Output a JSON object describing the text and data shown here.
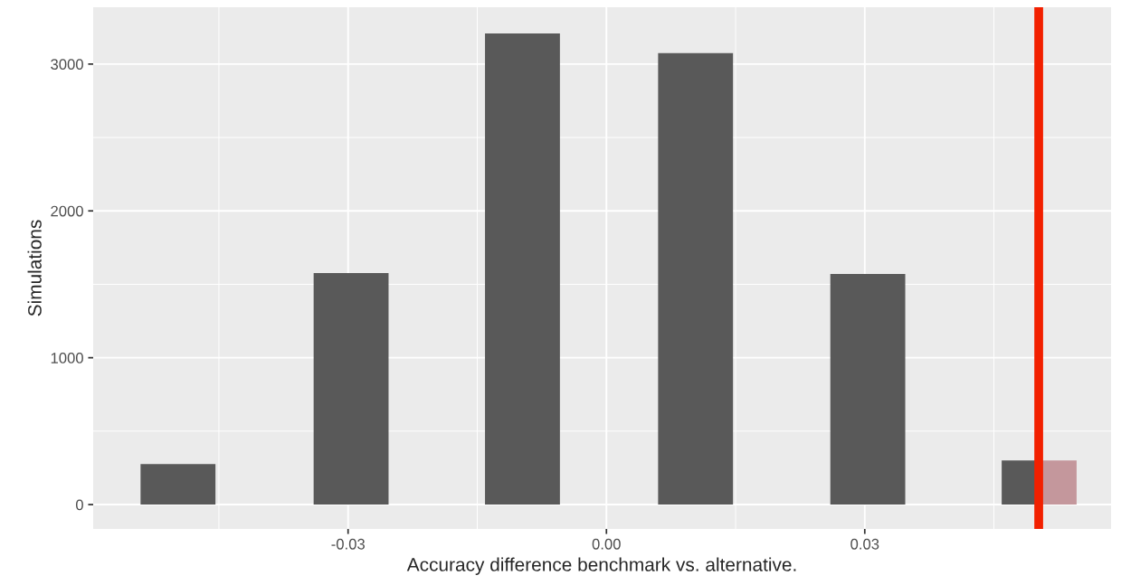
{
  "chart_data": {
    "type": "histogram",
    "xlabel": "Accuracy difference benchmark vs. alternative.",
    "ylabel": "Simulations",
    "bins": [
      -0.0541,
      -0.0454,
      -0.034,
      -0.0253,
      -0.0141,
      -0.0054,
      0.006,
      0.0147,
      0.026,
      0.0347,
      0.0459,
      0.0502,
      0.0546
    ],
    "values": [
      276,
      0,
      1577,
      0,
      3209,
      0,
      3074,
      0,
      1571,
      0,
      301,
      301
    ],
    "colors": [
      "#595959",
      "#595959",
      "#595959",
      "#595959",
      "#595959",
      "#595959",
      "#595959",
      "#595959",
      "#595959",
      "#595959",
      "#595959",
      "#c4979c"
    ],
    "xlim": [
      -0.0596,
      0.0586
    ],
    "xticks": [
      {
        "value": -0.03,
        "label": "-0.03"
      },
      {
        "value": 0,
        "label": "0.00"
      },
      {
        "value": 0.03,
        "label": "0.03"
      }
    ],
    "ylim": [
      -166,
      3387
    ],
    "yticks": [
      0,
      1000,
      2000,
      3000
    ],
    "ref_lines": [
      {
        "axis": "x",
        "value": 0.0502,
        "color": "#f22000"
      }
    ],
    "grid": true,
    "legend": false
  }
}
